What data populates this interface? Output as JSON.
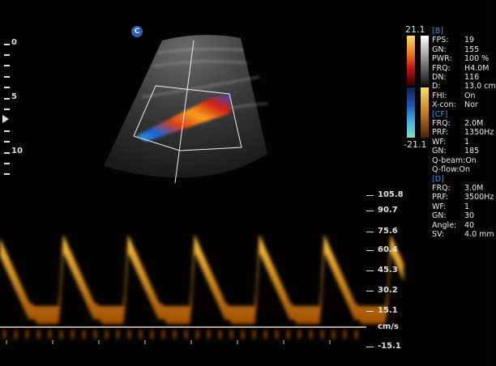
{
  "mode_badge": "C",
  "depth_scale": {
    "unit": "cm",
    "labels": [
      "0",
      "5",
      "10"
    ]
  },
  "color_scale": {
    "max": "21.1",
    "min": "-21.1"
  },
  "b_mode": {
    "header": "[B]",
    "params": [
      {
        "k": "FPS:",
        "v": "19"
      },
      {
        "k": "GN:",
        "v": "155"
      },
      {
        "k": "PWR:",
        "v": "100 %"
      },
      {
        "k": "FRQ:",
        "v": "H4.0M"
      },
      {
        "k": "DN:",
        "v": "116"
      },
      {
        "k": "D:",
        "v": "13.0 cm"
      },
      {
        "k": "FHI:",
        "v": "On"
      },
      {
        "k": "X-con:",
        "v": "Nor"
      }
    ]
  },
  "cf_mode": {
    "header": "[CF]",
    "params": [
      {
        "k": "FRQ:",
        "v": "2.0M"
      },
      {
        "k": "PRF:",
        "v": "1350Hz"
      },
      {
        "k": "WF:",
        "v": "1"
      },
      {
        "k": "GN:",
        "v": "185"
      },
      {
        "k": "Q-beam:",
        "v": "On"
      },
      {
        "k": "Q-flow:",
        "v": "On"
      }
    ]
  },
  "d_mode": {
    "header": "[D]",
    "params": [
      {
        "k": "FRQ:",
        "v": "3.0M"
      },
      {
        "k": "PRF:",
        "v": "3500Hz"
      },
      {
        "k": "WF:",
        "v": "1"
      },
      {
        "k": "GN:",
        "v": "30"
      },
      {
        "k": "Angle:",
        "v": "40"
      },
      {
        "k": "SV:",
        "v": "4.0 mm"
      }
    ]
  },
  "velocity_scale": {
    "unit": "cm/s",
    "labels": [
      "105.8",
      "90.7",
      "75.6",
      "60.4",
      "45.3",
      "30.2",
      "15.1",
      "-15.1"
    ]
  },
  "colors": {
    "doppler": "#f0a020",
    "section_header": "#4a8fd8",
    "badge": "#2e5fb8"
  }
}
